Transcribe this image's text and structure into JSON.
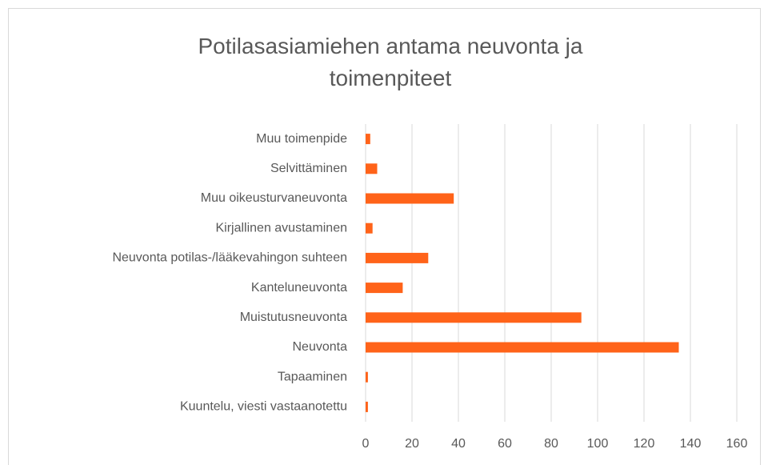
{
  "chart_data": {
    "type": "bar",
    "orientation": "horizontal",
    "title": "Potilasasiamiehen antama neuvonta ja toimenpiteet",
    "categories": [
      "Muu toimenpide",
      "Selvittäminen",
      "Muu oikeusturvaneuvonta",
      "Kirjallinen avustaminen",
      "Neuvonta potilas-/lääkevahingon suhteen",
      "Kanteluneuvonta",
      "Muistutusneuvonta",
      "Neuvonta",
      "Tapaaminen",
      "Kuuntelu, viesti vastaanotettu"
    ],
    "values": [
      2,
      5,
      38,
      3,
      27,
      16,
      93,
      135,
      1,
      1
    ],
    "color": "#ff6319",
    "xlim": [
      0,
      160
    ],
    "xticks": [
      0,
      20,
      40,
      60,
      80,
      100,
      120,
      140,
      160
    ],
    "grid": true
  }
}
